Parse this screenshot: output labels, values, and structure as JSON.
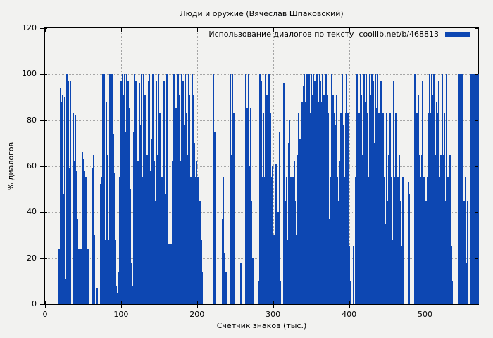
{
  "title": "Люди и оружие (Вячеслав Шпаковский)",
  "legend": {
    "label": "Использование диалогов по тексту  coollib.net/b/468813",
    "swatch_color": "#0d47b2"
  },
  "axes": {
    "ylabel": "% диалогов",
    "xlabel": "Счетчик знаков (тыс.)"
  },
  "colors": {
    "bar": "#0d47b2",
    "background": "#f2f2f0",
    "grid": "#a6a6a6",
    "border": "#000000"
  },
  "chart_data": {
    "type": "bar",
    "title": "Люди и оружие (Вячеслав Шпаковский)",
    "xlabel": "Счетчик знаков (тыс.)",
    "ylabel": "% диалогов",
    "legend": "Использование диалогов по тексту  coollib.net/b/468813",
    "legend_position": "top-right-inside",
    "grid": true,
    "xlim": [
      0,
      570
    ],
    "ylim": [
      0,
      120
    ],
    "xticks": [
      0,
      100,
      200,
      300,
      400,
      500
    ],
    "yticks": [
      0,
      20,
      40,
      60,
      80,
      100,
      120
    ],
    "bar_color": "#0d47b2",
    "points": [
      [
        18.5,
        24
      ],
      [
        20,
        94
      ],
      [
        21.5,
        88
      ],
      [
        23,
        91
      ],
      [
        24.5,
        48
      ],
      [
        26,
        90
      ],
      [
        27.5,
        11
      ],
      [
        29,
        100
      ],
      [
        30.5,
        97
      ],
      [
        32,
        59
      ],
      [
        33.5,
        97
      ],
      [
        37,
        83
      ],
      [
        38.5,
        62
      ],
      [
        40,
        82
      ],
      [
        41.5,
        58
      ],
      [
        43,
        37
      ],
      [
        44.5,
        24
      ],
      [
        46,
        10
      ],
      [
        47.5,
        24
      ],
      [
        49,
        66
      ],
      [
        50.5,
        63
      ],
      [
        52,
        58
      ],
      [
        53.5,
        55
      ],
      [
        55,
        45
      ],
      [
        56.5,
        24
      ],
      [
        62,
        59
      ],
      [
        63.5,
        65
      ],
      [
        65,
        30
      ],
      [
        68.5,
        7
      ],
      [
        73,
        52
      ],
      [
        74.5,
        55
      ],
      [
        76,
        100
      ],
      [
        77.5,
        100
      ],
      [
        79,
        28
      ],
      [
        80.5,
        88
      ],
      [
        82,
        65
      ],
      [
        83.5,
        28
      ],
      [
        85,
        100
      ],
      [
        86.5,
        68
      ],
      [
        88,
        100
      ],
      [
        89.5,
        74
      ],
      [
        91,
        57
      ],
      [
        92.5,
        28
      ],
      [
        94,
        8
      ],
      [
        95.5,
        5
      ],
      [
        97,
        14
      ],
      [
        98.5,
        55
      ],
      [
        100,
        97
      ],
      [
        101.5,
        100
      ],
      [
        103,
        91
      ],
      [
        104.5,
        100
      ],
      [
        106,
        75
      ],
      [
        107.5,
        100
      ],
      [
        109,
        97
      ],
      [
        110.5,
        85
      ],
      [
        112,
        50
      ],
      [
        113.5,
        18
      ],
      [
        115,
        8
      ],
      [
        116.5,
        75
      ],
      [
        118,
        100
      ],
      [
        119.5,
        97
      ],
      [
        121,
        85
      ],
      [
        122.5,
        62
      ],
      [
        124,
        96
      ],
      [
        125.5,
        78
      ],
      [
        127,
        100
      ],
      [
        128.5,
        55
      ],
      [
        130,
        100
      ],
      [
        131.5,
        91
      ],
      [
        133,
        83
      ],
      [
        134.5,
        65
      ],
      [
        136,
        97
      ],
      [
        137.5,
        100
      ],
      [
        139,
        58
      ],
      [
        140.5,
        72
      ],
      [
        142,
        100
      ],
      [
        143.5,
        62
      ],
      [
        145,
        45
      ],
      [
        146.5,
        97
      ],
      [
        148,
        65
      ],
      [
        149.5,
        100
      ],
      [
        151,
        83
      ],
      [
        152.5,
        30
      ],
      [
        154,
        55
      ],
      [
        155.5,
        62
      ],
      [
        157,
        97
      ],
      [
        158.5,
        48
      ],
      [
        160,
        100
      ],
      [
        161.5,
        85
      ],
      [
        163,
        26
      ],
      [
        164.5,
        8
      ],
      [
        166,
        26
      ],
      [
        168,
        62
      ],
      [
        169.5,
        100
      ],
      [
        171,
        97
      ],
      [
        172.5,
        85
      ],
      [
        174,
        55
      ],
      [
        175.5,
        100
      ],
      [
        177,
        91
      ],
      [
        178.5,
        62
      ],
      [
        180,
        100
      ],
      [
        181.5,
        97
      ],
      [
        183,
        78
      ],
      [
        184.5,
        100
      ],
      [
        186,
        83
      ],
      [
        187.5,
        65
      ],
      [
        189,
        100
      ],
      [
        190.5,
        91
      ],
      [
        192,
        55
      ],
      [
        193.5,
        100
      ],
      [
        195,
        91
      ],
      [
        196.5,
        70
      ],
      [
        198,
        55
      ],
      [
        199.5,
        62
      ],
      [
        201,
        55
      ],
      [
        202.5,
        35
      ],
      [
        204,
        45
      ],
      [
        205.5,
        28
      ],
      [
        207,
        14
      ],
      [
        221.5,
        100
      ],
      [
        223,
        75
      ],
      [
        233.5,
        37
      ],
      [
        235,
        55
      ],
      [
        236.5,
        22
      ],
      [
        238,
        14
      ],
      [
        243.5,
        100
      ],
      [
        245,
        65
      ],
      [
        246.5,
        100
      ],
      [
        248,
        83
      ],
      [
        249.5,
        28
      ],
      [
        257.5,
        18
      ],
      [
        259,
        9
      ],
      [
        264.5,
        100
      ],
      [
        266,
        85
      ],
      [
        267.5,
        100
      ],
      [
        269,
        60
      ],
      [
        270.5,
        85
      ],
      [
        272,
        45
      ],
      [
        273.5,
        20
      ],
      [
        281.5,
        10
      ],
      [
        283,
        100
      ],
      [
        284.5,
        97
      ],
      [
        286,
        55
      ],
      [
        287.5,
        83
      ],
      [
        289,
        55
      ],
      [
        290.5,
        100
      ],
      [
        292,
        91
      ],
      [
        293.5,
        65
      ],
      [
        295,
        100
      ],
      [
        296.5,
        83
      ],
      [
        298,
        55
      ],
      [
        299.5,
        60
      ],
      [
        301,
        30
      ],
      [
        302.5,
        28
      ],
      [
        304,
        61
      ],
      [
        305.5,
        38
      ],
      [
        307,
        40
      ],
      [
        308.5,
        75
      ],
      [
        310,
        10
      ],
      [
        314.5,
        96
      ],
      [
        316,
        45
      ],
      [
        317.5,
        55
      ],
      [
        319,
        28
      ],
      [
        320.5,
        70
      ],
      [
        322,
        80
      ],
      [
        323.5,
        55
      ],
      [
        325,
        35
      ],
      [
        326.5,
        55
      ],
      [
        328,
        62
      ],
      [
        329.5,
        45
      ],
      [
        331,
        30
      ],
      [
        332.5,
        65
      ],
      [
        334,
        83
      ],
      [
        335.5,
        72
      ],
      [
        337,
        65
      ],
      [
        338.5,
        88
      ],
      [
        340,
        95
      ],
      [
        341.5,
        100
      ],
      [
        343,
        88
      ],
      [
        344.5,
        100
      ],
      [
        346,
        91
      ],
      [
        347.5,
        100
      ],
      [
        349,
        83
      ],
      [
        350.5,
        100
      ],
      [
        352,
        91
      ],
      [
        353.5,
        100
      ],
      [
        355,
        97
      ],
      [
        356.5,
        91
      ],
      [
        358,
        100
      ],
      [
        359.5,
        88
      ],
      [
        361,
        100
      ],
      [
        362.5,
        97
      ],
      [
        364,
        88
      ],
      [
        365.5,
        100
      ],
      [
        367,
        91
      ],
      [
        368.5,
        55
      ],
      [
        370,
        100
      ],
      [
        371.5,
        91
      ],
      [
        373,
        83
      ],
      [
        374.5,
        37
      ],
      [
        376,
        55
      ],
      [
        377.5,
        100
      ],
      [
        379,
        91
      ],
      [
        380.5,
        83
      ],
      [
        382,
        78
      ],
      [
        383.5,
        91
      ],
      [
        385,
        55
      ],
      [
        386.5,
        45
      ],
      [
        388,
        62
      ],
      [
        389.5,
        83
      ],
      [
        391,
        100
      ],
      [
        392.5,
        78
      ],
      [
        394,
        55
      ],
      [
        395.5,
        83
      ],
      [
        397,
        100
      ],
      [
        398.5,
        83
      ],
      [
        400,
        25
      ],
      [
        401.5,
        10
      ],
      [
        405.5,
        25
      ],
      [
        409,
        55
      ],
      [
        410.5,
        100
      ],
      [
        412,
        97
      ],
      [
        413.5,
        83
      ],
      [
        415,
        100
      ],
      [
        416.5,
        91
      ],
      [
        418,
        65
      ],
      [
        419.5,
        100
      ],
      [
        421,
        88
      ],
      [
        422.5,
        100
      ],
      [
        424,
        83
      ],
      [
        425.5,
        55
      ],
      [
        427,
        100
      ],
      [
        428.5,
        91
      ],
      [
        430,
        100
      ],
      [
        431.5,
        97
      ],
      [
        433,
        70
      ],
      [
        434.5,
        100
      ],
      [
        436,
        85
      ],
      [
        437.5,
        100
      ],
      [
        439,
        83
      ],
      [
        440.5,
        65
      ],
      [
        442,
        97
      ],
      [
        443.5,
        100
      ],
      [
        445,
        83
      ],
      [
        446.5,
        55
      ],
      [
        448,
        35
      ],
      [
        449.5,
        83
      ],
      [
        451,
        45
      ],
      [
        452.5,
        65
      ],
      [
        454,
        83
      ],
      [
        455.5,
        55
      ],
      [
        457,
        28
      ],
      [
        458.5,
        97
      ],
      [
        460,
        55
      ],
      [
        461.5,
        83
      ],
      [
        463,
        35
      ],
      [
        464.5,
        55
      ],
      [
        466,
        65
      ],
      [
        467.5,
        45
      ],
      [
        469,
        25
      ],
      [
        470.5,
        55
      ],
      [
        478,
        53
      ],
      [
        479.5,
        48
      ],
      [
        486.5,
        100
      ],
      [
        488,
        91
      ],
      [
        489.5,
        83
      ],
      [
        491,
        91
      ],
      [
        492.5,
        65
      ],
      [
        494,
        55
      ],
      [
        495.5,
        65
      ],
      [
        497,
        97
      ],
      [
        498.5,
        55
      ],
      [
        500,
        83
      ],
      [
        501.5,
        45
      ],
      [
        503,
        55
      ],
      [
        504.5,
        83
      ],
      [
        506,
        100
      ],
      [
        507.5,
        83
      ],
      [
        509,
        100
      ],
      [
        510.5,
        91
      ],
      [
        512,
        100
      ],
      [
        513.5,
        65
      ],
      [
        515,
        88
      ],
      [
        516.5,
        83
      ],
      [
        518,
        97
      ],
      [
        519.5,
        55
      ],
      [
        521,
        65
      ],
      [
        522.5,
        100
      ],
      [
        524,
        65
      ],
      [
        525.5,
        83
      ],
      [
        527,
        45
      ],
      [
        528.5,
        100
      ],
      [
        530,
        55
      ],
      [
        531.5,
        35
      ],
      [
        533,
        65
      ],
      [
        534.5,
        25
      ],
      [
        536,
        10
      ],
      [
        544,
        100
      ],
      [
        545.5,
        100
      ],
      [
        547,
        91
      ],
      [
        548.5,
        100
      ],
      [
        550,
        65
      ],
      [
        551.5,
        45
      ],
      [
        553,
        55
      ],
      [
        554.5,
        18
      ],
      [
        556,
        45
      ],
      [
        559.5,
        100
      ],
      [
        561,
        100
      ],
      [
        562.5,
        100
      ],
      [
        564,
        100
      ],
      [
        565.5,
        100
      ],
      [
        567,
        100
      ],
      [
        568.5,
        100
      ],
      [
        570,
        100
      ]
    ]
  }
}
